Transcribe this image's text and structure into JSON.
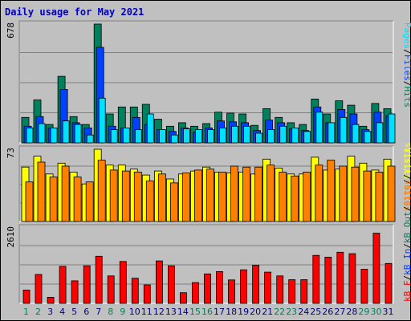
{
  "colors": {
    "hits": "#00805c",
    "files": "#0040ff",
    "pages": "#00e0ff",
    "visits": "#ffff00",
    "sites": "#ff8000",
    "kbytes": "#ff0000",
    "title": "#0000c0",
    "label_slash": "#000000",
    "weekend_day": "#00805c",
    "weekday_day": "#000080",
    "panel_bg": "#c0c0c0",
    "grid": "#808080"
  },
  "chart_data": {
    "type": "bar",
    "title": "Daily usage for May 2021",
    "categories": [
      "1",
      "2",
      "3",
      "4",
      "5",
      "6",
      "7",
      "8",
      "9",
      "10",
      "11",
      "12",
      "13",
      "14",
      "15",
      "16",
      "17",
      "18",
      "19",
      "20",
      "21",
      "22",
      "23",
      "24",
      "25",
      "26",
      "27",
      "28",
      "29",
      "30",
      "31"
    ],
    "weekend_days": [
      "1",
      "2",
      "8",
      "9",
      "15",
      "16",
      "22",
      "23",
      "29",
      "30"
    ],
    "panels": [
      {
        "id": "hits_files_pages",
        "max_label": "678",
        "ymax": 678,
        "legend": [
          "Pages",
          "/",
          "Files",
          "/",
          "Hits"
        ],
        "series": [
          {
            "name": "Hits",
            "color_key": "hits",
            "values": [
              145,
              245,
              105,
              380,
              150,
              105,
              678,
              165,
              205,
              205,
              220,
              135,
              95,
              115,
              95,
              110,
              175,
              170,
              165,
              100,
              195,
              145,
              115,
              105,
              250,
              165,
              240,
              215,
              95,
              225,
              195
            ]
          },
          {
            "name": "Files",
            "color_key": "files",
            "values": [
              95,
              150,
              85,
              305,
              115,
              85,
              545,
              95,
              85,
              145,
              105,
              75,
              65,
              85,
              60,
              85,
              125,
              120,
              115,
              70,
              130,
              115,
              80,
              70,
              205,
              115,
              190,
              165,
              75,
              175,
              155
            ]
          },
          {
            "name": "Pages",
            "color_key": "pages",
            "values": [
              85,
              110,
              85,
              125,
              105,
              45,
              255,
              75,
              85,
              75,
              165,
              75,
              45,
              80,
              75,
              75,
              85,
              95,
              95,
              55,
              75,
              95,
              85,
              65,
              175,
              115,
              145,
              105,
              65,
              115,
              165
            ]
          }
        ]
      },
      {
        "id": "visits_sites",
        "max_label": "73",
        "ymax": 73,
        "legend": [
          "Visits",
          "/",
          "Sites"
        ],
        "series": [
          {
            "name": "Visits",
            "color_key": "visits",
            "values": [
              55,
              66,
              48,
              59,
              50,
              38,
              73,
              57,
              57,
              53,
              47,
              51,
              43,
              48,
              51,
              55,
              50,
              49,
              50,
              48,
              63,
              54,
              48,
              48,
              65,
              52,
              53,
              66,
              59,
              52,
              63
            ]
          },
          {
            "name": "Sites",
            "color_key": "sites",
            "values": [
              40,
              60,
              45,
              56,
              45,
              40,
              62,
              52,
              51,
              50,
              41,
              48,
              39,
              49,
              52,
              53,
              50,
              56,
              55,
              55,
              57,
              50,
              46,
              50,
              57,
              62,
              56,
              55,
              51,
              50,
              56
            ]
          }
        ]
      },
      {
        "id": "kbytes",
        "max_label": "2610",
        "ymax": 2610,
        "legend": [
          "kB F",
          "/",
          "kB In",
          "/",
          "kB Out",
          "/",
          "Sites",
          "/",
          "Visits"
        ],
        "series": [
          {
            "name": "kB F",
            "color_key": "kbytes",
            "values": [
              460,
              1000,
              210,
              1280,
              780,
              1300,
              1630,
              950,
              1450,
              870,
              640,
              1470,
              1300,
              370,
              720,
              1020,
              1100,
              810,
              1160,
              1320,
              1080,
              950,
              820,
              820,
              1660,
              1600,
              1770,
              1720,
              1180,
              2430,
              1380
            ]
          }
        ]
      }
    ],
    "x_tick_labels": [
      "1",
      "2",
      "3",
      "4",
      "5",
      "6",
      "7",
      "8",
      "9",
      "10",
      "11",
      "12",
      "13",
      "14",
      "15",
      "16",
      "17",
      "18",
      "19",
      "20",
      "21",
      "22",
      "23",
      "24",
      "25",
      "26",
      "27",
      "28",
      "29",
      "30",
      "31"
    ]
  }
}
